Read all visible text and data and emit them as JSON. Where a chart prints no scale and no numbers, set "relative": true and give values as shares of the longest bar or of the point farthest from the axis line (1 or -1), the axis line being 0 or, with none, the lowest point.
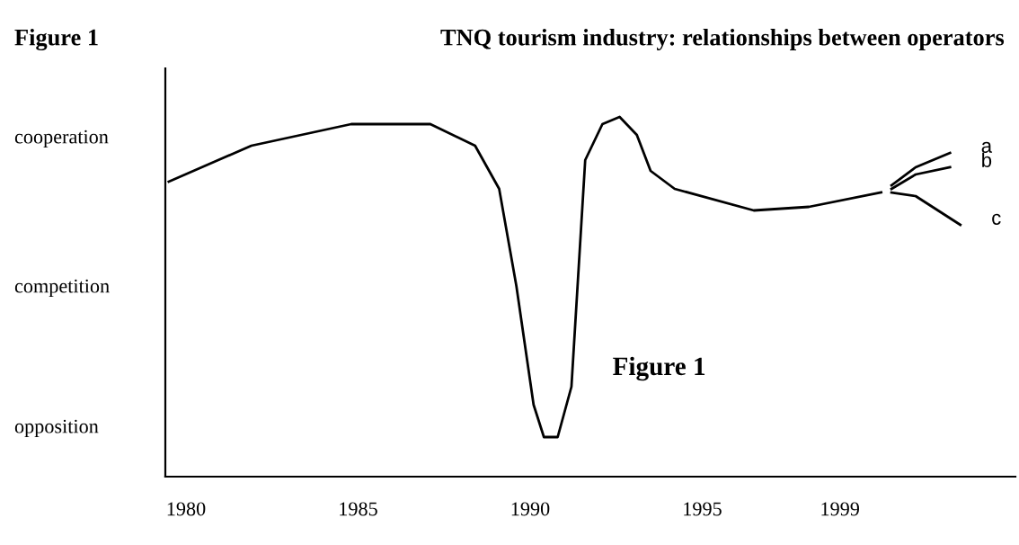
{
  "chart_data": {
    "type": "line",
    "title": "TNQ tourism industry: relationships between operators",
    "annotations": [
      "Figure 1",
      "Figure 1",
      "cooperation",
      "competition",
      "opposition"
    ],
    "relative": true,
    "xlim": [
      1979.4,
      2004.1
    ],
    "xticks": [
      1980,
      1985,
      1990,
      1995,
      1999
    ],
    "grid": false,
    "legend": false,
    "marker": "none",
    "line_style": "solid",
    "series": [
      {
        "color": "#000000",
        "x": [
          1979.5,
          1981.9,
          1984.8,
          1987.1,
          1988.4,
          1989.1,
          1989.6,
          1990.1,
          1990.4,
          1990.8,
          1991.2,
          1991.6,
          1992.1,
          1992.6,
          1993.1,
          1993.5,
          1994.2,
          1996.5,
          1998.1,
          2000.2
        ],
        "values": [
          0.82,
          0.92,
          0.98,
          0.98,
          0.92,
          0.8,
          0.53,
          0.2,
          0.11,
          0.11,
          0.25,
          0.88,
          0.98,
          1.0,
          0.95,
          0.85,
          0.8,
          0.74,
          0.75,
          0.79
        ]
      },
      {
        "name": "a",
        "color": "#000000",
        "x": [
          2000.5,
          2001.2,
          2002.2
        ],
        "values": [
          0.81,
          0.86,
          0.9
        ]
      },
      {
        "name": "b",
        "color": "#000000",
        "x": [
          2000.5,
          2001.2,
          2002.2
        ],
        "values": [
          0.8,
          0.84,
          0.86
        ]
      },
      {
        "name": "c",
        "color": "#000000",
        "x": [
          2000.5,
          2001.2,
          2002.5
        ],
        "values": [
          0.79,
          0.78,
          0.7
        ]
      }
    ]
  }
}
